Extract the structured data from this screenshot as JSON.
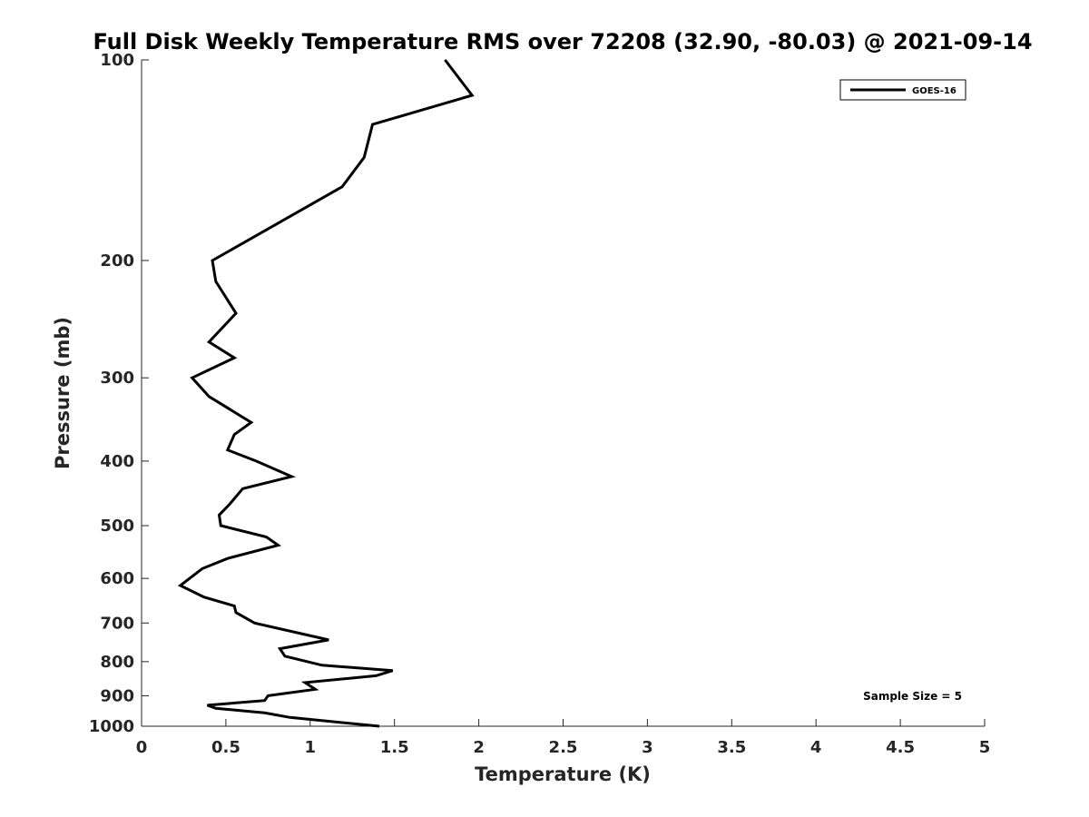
{
  "chart_data": {
    "type": "line",
    "title": "Full Disk Weekly Temperature RMS over 72208 (32.90, -80.03) @ 2021-09-14",
    "xlabel": "Temperature (K)",
    "ylabel": "Pressure (mb)",
    "xlim": [
      0,
      5
    ],
    "ylim": [
      100,
      1000
    ],
    "y_scale": "log",
    "y_reversed": true,
    "x_ticks": [
      0,
      0.5,
      1,
      1.5,
      2,
      2.5,
      3,
      3.5,
      4,
      4.5,
      5
    ],
    "x_tick_labels": [
      "0",
      "0.5",
      "1",
      "1.5",
      "2",
      "2.5",
      "3",
      "3.5",
      "4",
      "4.5",
      "5"
    ],
    "y_ticks": [
      100,
      200,
      300,
      400,
      500,
      600,
      700,
      800,
      900,
      1000
    ],
    "y_tick_labels": [
      "100",
      "200",
      "300",
      "400",
      "500",
      "600",
      "700",
      "800",
      "900",
      "1000"
    ],
    "grid": false,
    "legend_position": "top-right",
    "annotation": "Sample Size = 5",
    "series": [
      {
        "name": "GOES-16",
        "color": "#000000",
        "x": [
          1.8,
          1.96,
          1.37,
          1.32,
          1.19,
          0.42,
          0.44,
          0.56,
          0.4,
          0.55,
          0.3,
          0.4,
          0.65,
          0.55,
          0.51,
          0.68,
          0.89,
          0.6,
          0.52,
          0.46,
          0.47,
          0.74,
          0.81,
          0.51,
          0.36,
          0.23,
          0.37,
          0.55,
          0.56,
          0.67,
          1.11,
          0.82,
          0.85,
          1.07,
          1.49,
          1.39,
          0.97,
          1.03,
          0.75,
          0.73,
          0.39,
          0.44,
          0.73,
          0.88,
          1.41
        ],
        "y": [
          100,
          113,
          125,
          140,
          155,
          200,
          215,
          240,
          265,
          280,
          300,
          320,
          350,
          365,
          385,
          400,
          422,
          440,
          465,
          482,
          500,
          520,
          535,
          560,
          580,
          615,
          640,
          660,
          675,
          700,
          742,
          765,
          785,
          810,
          825,
          840,
          860,
          880,
          900,
          915,
          930,
          940,
          955,
          970,
          1000
        ]
      }
    ]
  }
}
